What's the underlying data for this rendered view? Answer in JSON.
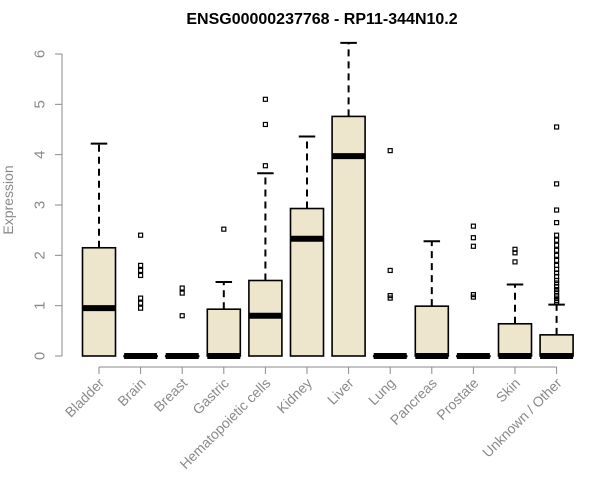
{
  "chart_data": {
    "type": "boxplot",
    "title": "ENSG00000237768 - RP11-344N10.2",
    "ylabel": "Expression",
    "xlabel": "",
    "ylim": [
      0,
      6.2
    ],
    "yticks": [
      0,
      1,
      2,
      3,
      4,
      5,
      6
    ],
    "box_fill": "#ede6cd",
    "categories": [
      "Bladder",
      "Brain",
      "Breast",
      "Gastric",
      "Hematopoietic cells",
      "Kidney",
      "Liver",
      "Lung",
      "Pancreas",
      "Prostate",
      "Skin",
      "Unknown / Other"
    ],
    "boxes": [
      {
        "q1": 0.0,
        "median": 0.95,
        "q3": 2.15,
        "whisker_low": 0.0,
        "whisker_high": 4.22,
        "outliers": []
      },
      {
        "q1": 0.0,
        "median": 0.0,
        "q3": 0.0,
        "whisker_low": 0.0,
        "whisker_high": 0.0,
        "outliers": [
          2.4,
          1.8,
          1.7,
          1.6,
          1.15,
          1.05,
          0.95
        ]
      },
      {
        "q1": 0.0,
        "median": 0.0,
        "q3": 0.0,
        "whisker_low": 0.0,
        "whisker_high": 0.0,
        "outliers": [
          1.35,
          1.25,
          0.8
        ]
      },
      {
        "q1": 0.0,
        "median": 0.0,
        "q3": 0.93,
        "whisker_low": 0.0,
        "whisker_high": 1.47,
        "outliers": [
          2.52
        ]
      },
      {
        "q1": 0.0,
        "median": 0.8,
        "q3": 1.5,
        "whisker_low": 0.0,
        "whisker_high": 3.63,
        "outliers": [
          5.1,
          4.6,
          3.78
        ]
      },
      {
        "q1": 0.0,
        "median": 2.33,
        "q3": 2.93,
        "whisker_low": 0.0,
        "whisker_high": 4.36,
        "outliers": []
      },
      {
        "q1": 0.0,
        "median": 3.97,
        "q3": 4.76,
        "whisker_low": 0.0,
        "whisker_high": 6.22,
        "outliers": []
      },
      {
        "q1": 0.0,
        "median": 0.0,
        "q3": 0.0,
        "whisker_low": 0.0,
        "whisker_high": 0.0,
        "outliers": [
          4.08,
          1.7,
          1.2,
          1.15
        ]
      },
      {
        "q1": 0.0,
        "median": 0.0,
        "q3": 0.99,
        "whisker_low": 0.0,
        "whisker_high": 2.28,
        "outliers": []
      },
      {
        "q1": 0.0,
        "median": 0.0,
        "q3": 0.0,
        "whisker_low": 0.0,
        "whisker_high": 0.0,
        "outliers": [
          2.58,
          2.35,
          2.18,
          1.22,
          1.17
        ]
      },
      {
        "q1": 0.0,
        "median": 0.0,
        "q3": 0.64,
        "whisker_low": 0.0,
        "whisker_high": 1.42,
        "outliers": [
          2.12,
          2.05,
          1.87
        ]
      },
      {
        "q1": 0.0,
        "median": 0.0,
        "q3": 0.42,
        "whisker_low": 0.0,
        "whisker_high": 1.02,
        "outliers": [
          4.55,
          3.42,
          2.9,
          2.65,
          2.4,
          2.3,
          2.2,
          2.1,
          2.0,
          1.9,
          1.8,
          1.72,
          1.65,
          1.58,
          1.5,
          1.45,
          1.38,
          1.32,
          1.27,
          1.2,
          1.15,
          1.1,
          1.06
        ]
      }
    ]
  }
}
